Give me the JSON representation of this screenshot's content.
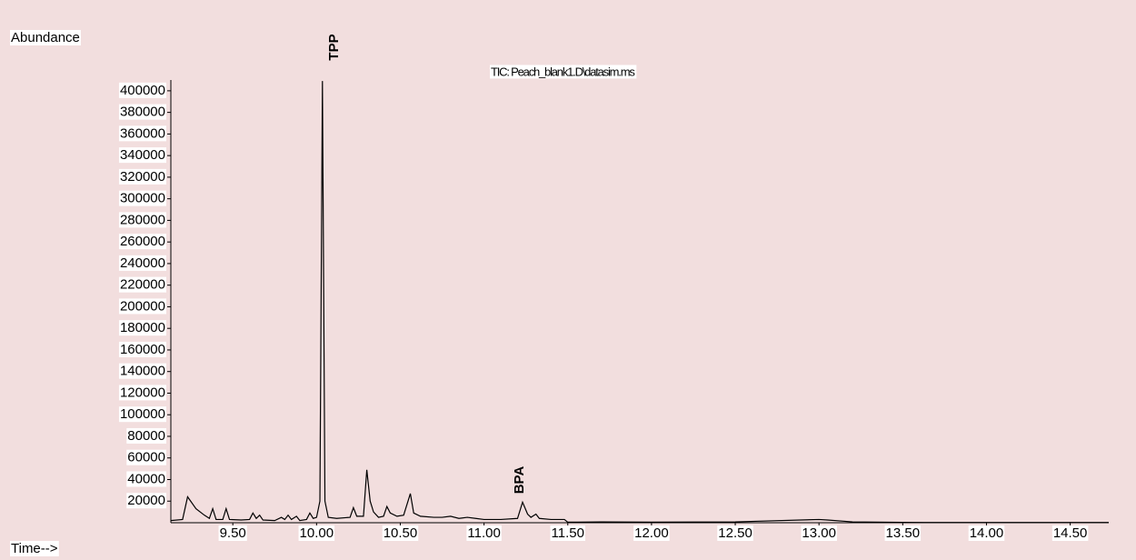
{
  "chart_data": {
    "type": "line",
    "title": "TIC: Peach_blank1.D\\datasim.ms",
    "y_label": "Abundance",
    "x_label": "Time-->",
    "annotations": [
      "TPP",
      "BPA"
    ],
    "xlim": [
      9.13,
      14.73
    ],
    "ylim": [
      0,
      410000
    ],
    "xticks": [
      {
        "value": 9.5,
        "label": "9.50"
      },
      {
        "value": 10.0,
        "label": "10.00"
      },
      {
        "value": 10.5,
        "label": "10.50"
      },
      {
        "value": 11.0,
        "label": "11.00"
      },
      {
        "value": 11.5,
        "label": "11.50"
      },
      {
        "value": 12.0,
        "label": "12.00"
      },
      {
        "value": 12.5,
        "label": "12.50"
      },
      {
        "value": 13.0,
        "label": "13.00"
      },
      {
        "value": 13.5,
        "label": "13.50"
      },
      {
        "value": 14.0,
        "label": "14.00"
      },
      {
        "value": 14.5,
        "label": "14.50"
      }
    ],
    "yticks": [
      20000,
      40000,
      60000,
      80000,
      100000,
      120000,
      140000,
      160000,
      180000,
      200000,
      220000,
      240000,
      260000,
      280000,
      300000,
      320000,
      340000,
      360000,
      380000,
      400000
    ],
    "grid": false,
    "color": "#000000",
    "x": [
      9.13,
      9.2,
      9.23,
      9.28,
      9.33,
      9.36,
      9.38,
      9.4,
      9.44,
      9.46,
      9.48,
      9.55,
      9.6,
      9.62,
      9.64,
      9.66,
      9.68,
      9.75,
      9.79,
      9.81,
      9.83,
      9.85,
      9.88,
      9.9,
      9.94,
      9.96,
      9.98,
      10.0,
      10.02,
      10.035,
      10.05,
      10.07,
      10.12,
      10.2,
      10.22,
      10.24,
      10.28,
      10.3,
      10.32,
      10.34,
      10.37,
      10.4,
      10.42,
      10.44,
      10.48,
      10.52,
      10.56,
      10.58,
      10.62,
      10.7,
      10.75,
      10.8,
      10.85,
      10.9,
      10.95,
      11.0,
      11.1,
      11.2,
      11.23,
      11.26,
      11.28,
      11.31,
      11.33,
      11.4,
      11.48,
      11.5,
      11.7,
      12.0,
      12.5,
      13.0,
      13.05,
      13.2,
      13.5,
      14.0,
      14.73
    ],
    "values": [
      2000,
      3000,
      24000,
      13000,
      7000,
      4000,
      13000,
      3000,
      3000,
      13000,
      3000,
      2500,
      3000,
      9000,
      4000,
      7000,
      2500,
      2000,
      5000,
      3000,
      7000,
      3000,
      6000,
      2000,
      3000,
      9000,
      4000,
      5000,
      20000,
      409000,
      20000,
      5000,
      4000,
      5000,
      14000,
      6000,
      6000,
      49000,
      20000,
      10000,
      5000,
      6000,
      15000,
      9000,
      6000,
      7000,
      27000,
      9000,
      6000,
      5000,
      5000,
      6000,
      4000,
      5000,
      4000,
      3000,
      3000,
      4000,
      19000,
      8000,
      5000,
      8000,
      4000,
      3000,
      3000,
      500,
      800,
      500,
      800,
      3000,
      2500,
      800,
      300,
      200,
      200
    ]
  }
}
